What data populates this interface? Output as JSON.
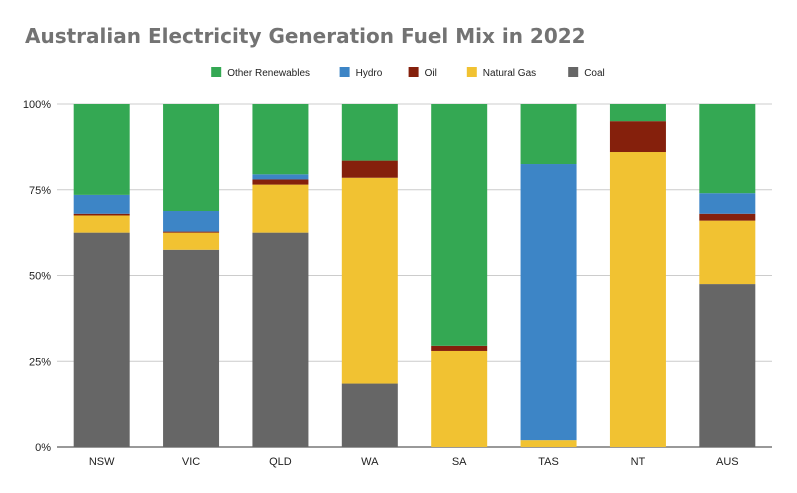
{
  "chart_data": {
    "type": "bar",
    "stacked": true,
    "normalized": true,
    "title": "Australian Electricity Generation Fuel Mix in 2022",
    "xlabel": "",
    "ylabel": "",
    "ylim": [
      0,
      100
    ],
    "yticks": [
      "0%",
      "25%",
      "50%",
      "75%",
      "100%"
    ],
    "grid": true,
    "legend_position": "top",
    "categories": [
      "NSW",
      "VIC",
      "QLD",
      "WA",
      "SA",
      "TAS",
      "NT",
      "AUS"
    ],
    "series": [
      {
        "name": "Coal",
        "color": "#666666",
        "values": [
          62.5,
          57.5,
          62.5,
          18.5,
          0,
          0,
          0,
          47.5
        ]
      },
      {
        "name": "Natural Gas",
        "color": "#f1c232",
        "values": [
          5,
          5,
          14,
          60,
          28,
          2,
          86,
          18.5
        ]
      },
      {
        "name": "Oil",
        "color": "#85200c",
        "values": [
          0.5,
          0.3,
          1.5,
          5,
          1.5,
          0,
          9,
          2
        ]
      },
      {
        "name": "Hydro",
        "color": "#3d85c6",
        "values": [
          5.5,
          6,
          1.5,
          0,
          0,
          80.5,
          0,
          6
        ]
      },
      {
        "name": "Other Renewables",
        "color": "#34a853",
        "values": [
          26.5,
          31.2,
          20.5,
          16.5,
          70.5,
          17.5,
          5,
          26
        ]
      }
    ],
    "legend_order": [
      "Other Renewables",
      "Hydro",
      "Oil",
      "Natural Gas",
      "Coal"
    ]
  }
}
